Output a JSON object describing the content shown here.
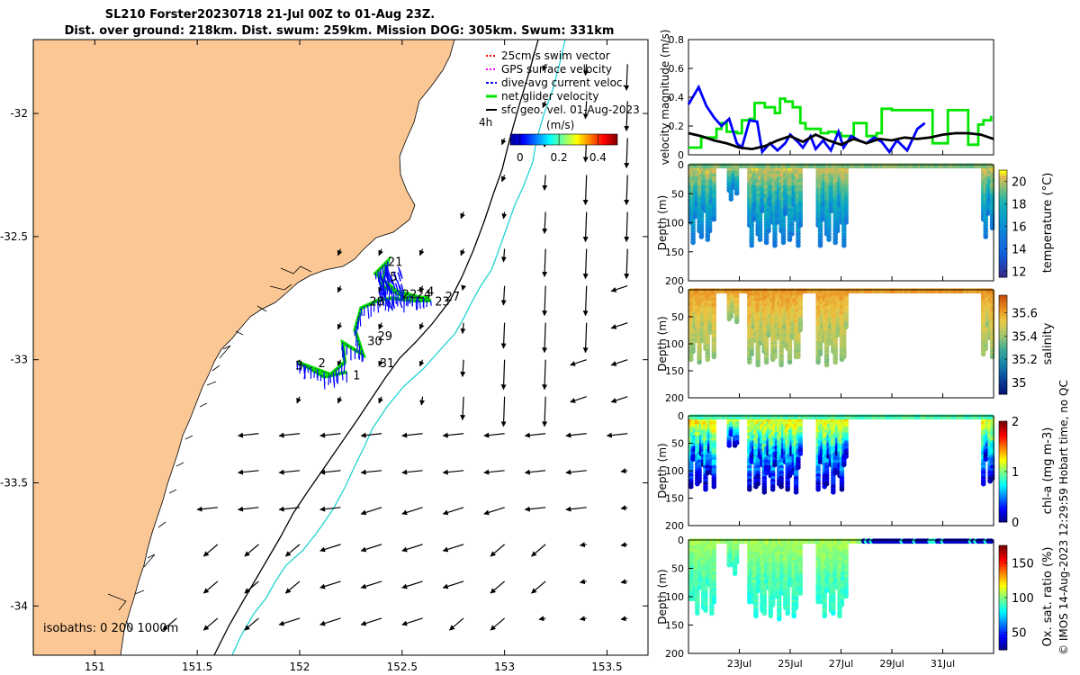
{
  "header": {
    "title_line1": "SL210 Forster20230718 21-Jul 00Z to 01-Aug 23Z.",
    "title_line2": "Dist. over ground: 218km. Dist. swum: 259km. Mission DOG: 305km. Swum: 331km"
  },
  "colors": {
    "land": "#fbc895",
    "isobath_200": "#000000",
    "isobath_1000": "#22d3d3",
    "net_velocity": "#00e600",
    "current": "#0000ff",
    "geo": "#000000"
  },
  "chart_data": [
    {
      "id": "map",
      "type": "scatter",
      "xlabel": "",
      "ylabel": "",
      "xlim": [
        150.7,
        153.7
      ],
      "ylim": [
        -34.2,
        -31.7
      ],
      "xticks": [
        "151",
        "151.5",
        "152",
        "152.5",
        "153",
        "153.5"
      ],
      "xtick_values": [
        151,
        151.5,
        152,
        152.5,
        153,
        153.5
      ],
      "yticks": [
        "-32",
        "-32.5",
        "-33",
        "-33.5",
        "-34"
      ],
      "ytick_values": [
        -32,
        -32.5,
        -33,
        -33.5,
        -34
      ],
      "legend": {
        "placement": "top-right",
        "items": [
          {
            "label": "25cm/s swim vector",
            "color": "#ff0000"
          },
          {
            "label": "GPS surface velocity",
            "color": "#ff00ff"
          },
          {
            "label": "dive-avg current veloc.",
            "color": "#0000ff"
          },
          {
            "label": "net glider velocity",
            "color": "#00e600"
          },
          {
            "label": "sfc geo. vel. 01-Aug-2023",
            "color": "#000000"
          }
        ]
      },
      "scale_label": "4h",
      "colorbar": {
        "title": "(m/s)",
        "ticks": [
          "0",
          "0.2",
          "0.4"
        ],
        "tick_values": [
          0,
          0.2,
          0.4
        ],
        "range": [
          -0.05,
          0.5
        ]
      },
      "isobath_label": "isobaths: 0   200  1000m",
      "day_labels": [
        {
          "text": "21",
          "lon": 152.43,
          "lat": -32.62
        },
        {
          "text": "5",
          "lon": 152.44,
          "lat": -32.68
        },
        {
          "text": "4",
          "lon": 152.62,
          "lat": -32.74
        },
        {
          "text": "22",
          "lon": 152.5,
          "lat": -32.75
        },
        {
          "text": "24",
          "lon": 152.57,
          "lat": -32.75
        },
        {
          "text": "27",
          "lon": 152.71,
          "lat": -32.76
        },
        {
          "text": "28",
          "lon": 152.34,
          "lat": -32.78
        },
        {
          "text": "23",
          "lon": 152.66,
          "lat": -32.78
        },
        {
          "text": "29",
          "lon": 152.38,
          "lat": -32.92
        },
        {
          "text": "30",
          "lon": 152.33,
          "lat": -32.94
        },
        {
          "text": "31",
          "lon": 152.39,
          "lat": -33.03
        },
        {
          "text": "2",
          "lon": 152.09,
          "lat": -33.03
        },
        {
          "text": "3",
          "lon": 151.98,
          "lat": -33.04
        },
        {
          "text": "1",
          "lon": 152.26,
          "lat": -33.08
        }
      ],
      "track": [
        [
          152.23,
          -33.05
        ],
        [
          152.12,
          -33.07
        ],
        [
          152.04,
          -33.03
        ],
        [
          151.99,
          -33.01
        ],
        [
          152.15,
          -33.06
        ],
        [
          152.22,
          -33.01
        ],
        [
          152.21,
          -32.93
        ],
        [
          152.31,
          -32.98
        ],
        [
          152.27,
          -32.88
        ],
        [
          152.3,
          -32.79
        ],
        [
          152.38,
          -32.76
        ],
        [
          152.45,
          -32.75
        ],
        [
          152.55,
          -32.76
        ],
        [
          152.64,
          -32.76
        ],
        [
          152.47,
          -32.72
        ],
        [
          152.37,
          -32.65
        ],
        [
          152.43,
          -32.6
        ],
        [
          152.4,
          -32.7
        ],
        [
          152.5,
          -32.74
        ],
        [
          152.63,
          -32.75
        ]
      ],
      "vectors": {
        "lon": [
          151.0,
          151.2,
          151.4,
          151.6,
          151.8,
          152.0,
          152.2,
          152.4,
          152.6,
          152.8,
          153.0,
          153.2,
          153.4,
          153.6
        ],
        "lat": [
          -31.8,
          -31.95,
          -32.1,
          -32.25,
          -32.4,
          -32.55,
          -32.7,
          -32.85,
          -33.0,
          -33.15,
          -33.3,
          -33.45,
          -33.6,
          -33.75,
          -33.9,
          -34.05
        ],
        "note": "surface geostrophic velocity, southward over slope (~0.5 m/s), weak SW-ward offshore shelf"
      }
    },
    {
      "id": "speed",
      "type": "line",
      "xlabel": "",
      "ylabel": "velocity magnitude (m/s)",
      "ylim": [
        0,
        0.8
      ],
      "yticks": [
        "0",
        "0.2",
        "0.4",
        "0.6",
        "0.8"
      ],
      "ytick_values": [
        0,
        0.2,
        0.4,
        0.6,
        0.8
      ],
      "xlim": [
        21,
        33
      ],
      "series": [
        {
          "name": "net glider velocity",
          "color": "#00e600",
          "x": [
            21.0,
            21.5,
            22.1,
            22.3,
            22.5,
            22.9,
            23.1,
            23.4,
            23.6,
            24.0,
            24.4,
            24.6,
            24.8,
            25.1,
            25.4,
            25.6,
            25.9,
            26.2,
            26.5,
            26.8,
            27.0,
            27.5,
            28.0,
            28.4,
            28.6,
            29.0,
            29.5,
            30.0,
            30.6,
            31.2,
            31.6,
            32.0,
            32.4,
            32.6,
            32.9
          ],
          "values": [
            0.05,
            0.12,
            0.18,
            0.22,
            0.16,
            0.15,
            0.24,
            0.25,
            0.36,
            0.33,
            0.29,
            0.39,
            0.37,
            0.33,
            0.22,
            0.18,
            0.18,
            0.15,
            0.16,
            0.15,
            0.13,
            0.22,
            0.13,
            0.15,
            0.32,
            0.31,
            0.31,
            0.31,
            0.08,
            0.31,
            0.31,
            0.07,
            0.21,
            0.24,
            0.27
          ]
        },
        {
          "name": "dive-avg current veloc.",
          "color": "#0000ff",
          "x": [
            21.0,
            21.4,
            21.7,
            22.0,
            22.3,
            22.6,
            22.9,
            23.1,
            23.4,
            23.7,
            23.9,
            24.2,
            24.5,
            24.8,
            25.0,
            25.3,
            25.5,
            25.8,
            26.0,
            26.3,
            26.6,
            26.9,
            27.1,
            27.4,
            27.7,
            28.0,
            28.3,
            28.6,
            28.9,
            29.2,
            29.6,
            30.0,
            30.3
          ],
          "values": [
            0.35,
            0.47,
            0.34,
            0.26,
            0.2,
            0.25,
            0.08,
            0.05,
            0.24,
            0.23,
            0.02,
            0.08,
            0.03,
            0.08,
            0.14,
            0.09,
            0.05,
            0.13,
            0.04,
            0.1,
            0.03,
            0.16,
            0.05,
            0.13,
            0.1,
            0.08,
            0.12,
            0.09,
            0.02,
            0.1,
            0.03,
            0.18,
            0.22
          ]
        },
        {
          "name": "sfc geo. vel.",
          "color": "#000000",
          "x": [
            21.0,
            21.5,
            22.0,
            22.5,
            23.0,
            23.5,
            24.0,
            24.5,
            25.0,
            25.5,
            26.0,
            26.5,
            27.0,
            27.5,
            28.0,
            28.5,
            29.0,
            29.5,
            30.0,
            30.5,
            31.0,
            31.5,
            32.0,
            32.5,
            33.0
          ],
          "values": [
            0.15,
            0.13,
            0.1,
            0.08,
            0.05,
            0.04,
            0.06,
            0.1,
            0.13,
            0.09,
            0.14,
            0.1,
            0.07,
            0.11,
            0.08,
            0.11,
            0.1,
            0.12,
            0.11,
            0.12,
            0.14,
            0.15,
            0.15,
            0.14,
            0.11
          ]
        }
      ]
    },
    {
      "id": "temperature",
      "type": "heatmap",
      "variable": "temperature",
      "ylabel": "Depth (m)",
      "cbar_label": "temperature (°C)",
      "ylim": [
        200,
        0
      ],
      "yticks": [
        "0",
        "50",
        "100",
        "150",
        "200"
      ],
      "ytick_values": [
        0,
        50,
        100,
        150,
        200
      ],
      "clim": [
        11.5,
        21
      ],
      "cbar_ticks": [
        "12",
        "14",
        "16",
        "18",
        "20"
      ],
      "cbar_tick_values": [
        12,
        14,
        16,
        18,
        20
      ],
      "surface_value": 19.5,
      "top_value": 20.5,
      "bottom_value": 15,
      "segments": [
        {
          "t0": 21.1,
          "t1": 22.0,
          "depth": 135,
          "var": 0.9
        },
        {
          "t0": 22.6,
          "t1": 22.9,
          "depth": 60,
          "var": 0.5
        },
        {
          "t0": 23.4,
          "t1": 25.4,
          "depth": 140,
          "var": 1.1
        },
        {
          "t0": 26.1,
          "t1": 27.2,
          "depth": 140,
          "var": 0.7
        },
        {
          "t0": 32.6,
          "t1": 32.95,
          "depth": 128,
          "var": 0.8
        }
      ],
      "surface_segments": [
        [
          21.1,
          32.95
        ]
      ]
    },
    {
      "id": "salinity",
      "type": "heatmap",
      "variable": "salinity",
      "ylabel": "Depth (m)",
      "cbar_label": "salinity",
      "ylim": [
        200,
        0
      ],
      "yticks": [
        "0",
        "50",
        "100",
        "150",
        "200"
      ],
      "ytick_values": [
        0,
        50,
        100,
        150,
        200
      ],
      "clim": [
        34.9,
        35.75
      ],
      "cbar_ticks": [
        "35",
        "35.2",
        "35.4",
        "35.6"
      ],
      "cbar_tick_values": [
        35.0,
        35.2,
        35.4,
        35.6
      ],
      "surface_value": 35.62,
      "top_value": 35.62,
      "bottom_value": 35.38,
      "segments": [
        {
          "t0": 21.1,
          "t1": 22.0,
          "depth": 135,
          "var": 0.7
        },
        {
          "t0": 22.6,
          "t1": 22.9,
          "depth": 60,
          "var": 0.5
        },
        {
          "t0": 23.4,
          "t1": 25.4,
          "depth": 140,
          "var": 0.8
        },
        {
          "t0": 26.1,
          "t1": 27.2,
          "depth": 140,
          "var": 0.6
        },
        {
          "t0": 32.6,
          "t1": 32.95,
          "depth": 128,
          "var": 0.7
        }
      ],
      "surface_segments": [
        [
          21.1,
          32.95
        ]
      ]
    },
    {
      "id": "chla",
      "type": "heatmap",
      "variable": "chl-a",
      "ylabel": "Depth (m)",
      "cbar_label": "chl-a (mg m-3)",
      "ylim": [
        200,
        0
      ],
      "yticks": [
        "0",
        "50",
        "100",
        "150",
        "200"
      ],
      "ytick_values": [
        0,
        50,
        100,
        150,
        200
      ],
      "clim": [
        0,
        2
      ],
      "cbar_ticks": [
        "0",
        "1",
        "2"
      ],
      "cbar_tick_values": [
        0,
        1,
        2
      ],
      "surface_value": 0.9,
      "top_value": 1.3,
      "bottom_value": 0.05,
      "segments": [
        {
          "t0": 21.1,
          "t1": 22.0,
          "depth": 135,
          "var": 1.4
        },
        {
          "t0": 22.6,
          "t1": 22.9,
          "depth": 60,
          "var": 1.0
        },
        {
          "t0": 23.4,
          "t1": 25.4,
          "depth": 140,
          "var": 1.4
        },
        {
          "t0": 26.1,
          "t1": 27.2,
          "depth": 140,
          "var": 1.1
        },
        {
          "t0": 32.6,
          "t1": 32.95,
          "depth": 128,
          "var": 1.2
        }
      ],
      "surface_segments": [
        [
          21.1,
          32.95
        ]
      ]
    },
    {
      "id": "oxygen",
      "type": "heatmap",
      "variable": "Ox. sat. ratio",
      "ylabel": "Depth (m)",
      "cbar_label": "Ox. sat. ratio (%)",
      "ylim": [
        200,
        0
      ],
      "yticks": [
        "0",
        "50",
        "100",
        "150",
        "200"
      ],
      "ytick_values": [
        0,
        50,
        100,
        150,
        200
      ],
      "clim": [
        25,
        175
      ],
      "cbar_ticks": [
        "50",
        "100",
        "150"
      ],
      "cbar_tick_values": [
        50,
        100,
        150
      ],
      "surface_value": 105,
      "top_value": 105,
      "bottom_value": 85,
      "segments": [
        {
          "t0": 21.1,
          "t1": 22.0,
          "depth": 135,
          "var": 0.5
        },
        {
          "t0": 22.6,
          "t1": 22.9,
          "depth": 60,
          "var": 0.4
        },
        {
          "t0": 23.4,
          "t1": 25.4,
          "depth": 140,
          "var": 0.5
        },
        {
          "t0": 26.1,
          "t1": 27.2,
          "depth": 140,
          "var": 0.5
        }
      ],
      "surface_segments": [
        [
          21.1,
          27.9
        ]
      ],
      "surface_segments_low": [
        [
          27.9,
          33.0
        ]
      ]
    }
  ],
  "time_axis": {
    "xlim": [
      21,
      33
    ],
    "ticks": [
      "23Jul",
      "25Jul",
      "27Jul",
      "29Jul",
      "31Jul"
    ],
    "tick_values": [
      23,
      25,
      27,
      29,
      31
    ]
  },
  "footer": {
    "stamp": "© IMOS 14-Aug-2023 12:29:59 Hobart time, no QC"
  }
}
